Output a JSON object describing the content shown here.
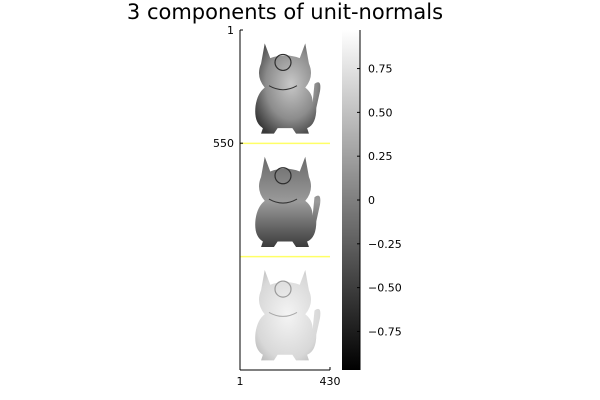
{
  "chart_data": {
    "type": "heatmap",
    "title": "3 components of unit-normals",
    "colormap": "grays",
    "colors": {
      "separator": "#ffff66",
      "axis": "#000000",
      "background": "#ffffff"
    },
    "panels": [
      {
        "component": 1,
        "shading": "mid-gray"
      },
      {
        "component": 2,
        "shading": "dark-gray"
      },
      {
        "component": 3,
        "shading": "light-gray"
      }
    ],
    "x_ticks": [
      {
        "value": 1,
        "label": "1"
      },
      {
        "value": 430,
        "label": "430"
      }
    ],
    "y_ticks": [
      {
        "value": 1,
        "label": "1"
      },
      {
        "value": 550,
        "label": "550"
      }
    ],
    "xlim": [
      1,
      430
    ],
    "ylim": [
      1,
      1650
    ],
    "yflip": true,
    "colorbar": {
      "range": [
        -0.97,
        0.97
      ],
      "ticks": [
        {
          "value": 0.75,
          "label": "0.75"
        },
        {
          "value": 0.5,
          "label": "0.50"
        },
        {
          "value": 0.25,
          "label": "0.25"
        },
        {
          "value": 0,
          "label": "0"
        },
        {
          "value": -0.25,
          "label": "−0.25"
        },
        {
          "value": -0.5,
          "label": "−0.50"
        },
        {
          "value": -0.75,
          "label": "−0.75"
        }
      ]
    }
  }
}
